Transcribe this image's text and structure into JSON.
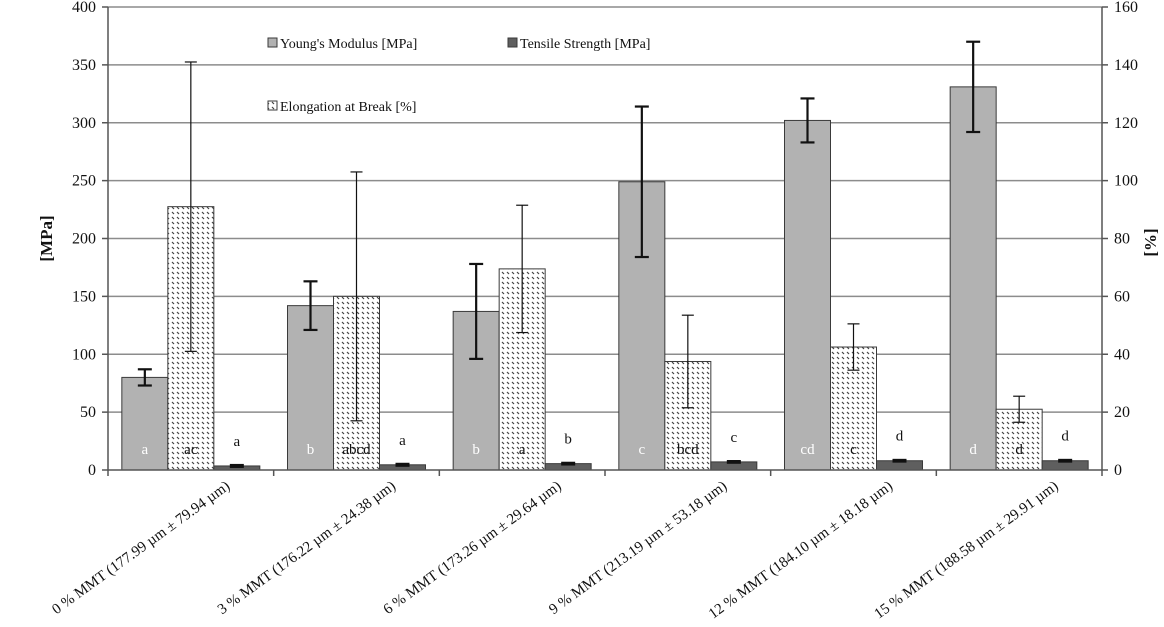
{
  "chart_data": {
    "type": "bar",
    "categories": [
      "0 % MMT (177.99 µm ± 79.94 µm)",
      "3 % MMT (176.22 µm ± 24.38 µm)",
      "6 % MMT (173.26 µm ± 29.64 µm)",
      "9 % MMT (213.19 µm ± 53.18 µm)",
      "12 % MMT (184.10 µm ± 18.18 µm)",
      "15 % MMT (188.58 µm ± 29.91 µm)"
    ],
    "series": [
      {
        "name": "Young's Modulus [MPa]",
        "axis": "left",
        "values": [
          80,
          142,
          137,
          249,
          302,
          331
        ],
        "errors": [
          7,
          21,
          41,
          65,
          19,
          39
        ],
        "letters": [
          "a",
          "b",
          "b",
          "c",
          "cd",
          "d"
        ],
        "fill": "#b2b2b2",
        "pattern": "solid"
      },
      {
        "name": "Elongation at Break [%]",
        "axis": "right",
        "values": [
          91,
          60,
          69.5,
          37.5,
          42.5,
          21
        ],
        "errors": [
          50,
          43,
          22,
          16,
          8,
          4.5
        ],
        "letters": [
          "ac",
          "abcd",
          "a",
          "bcd",
          "c",
          "d"
        ],
        "fill": "#ffffff",
        "pattern": "dashed-hatch"
      },
      {
        "name": "Tensile Strength [MPa]",
        "axis": "left",
        "values": [
          3.5,
          4.5,
          5.5,
          7.0,
          8.0,
          8.0
        ],
        "errors": [
          0.8,
          0.8,
          0.7,
          0.7,
          0.7,
          0.7
        ],
        "letters": [
          "a",
          "a",
          "b",
          "c",
          "d",
          "d"
        ],
        "fill": "#5f5f5f",
        "pattern": "solid"
      }
    ],
    "ylabel": "[MPa]",
    "y2label": "[%]",
    "ylim": [
      0,
      400
    ],
    "y2lim": [
      0,
      160
    ],
    "yticks": [
      "0",
      "50",
      "100",
      "150",
      "200",
      "250",
      "300",
      "350",
      "400"
    ],
    "y2ticks": [
      "0",
      "20",
      "40",
      "60",
      "80",
      "100",
      "120",
      "140",
      "160"
    ],
    "grid": true,
    "legend_position": "top-center"
  }
}
